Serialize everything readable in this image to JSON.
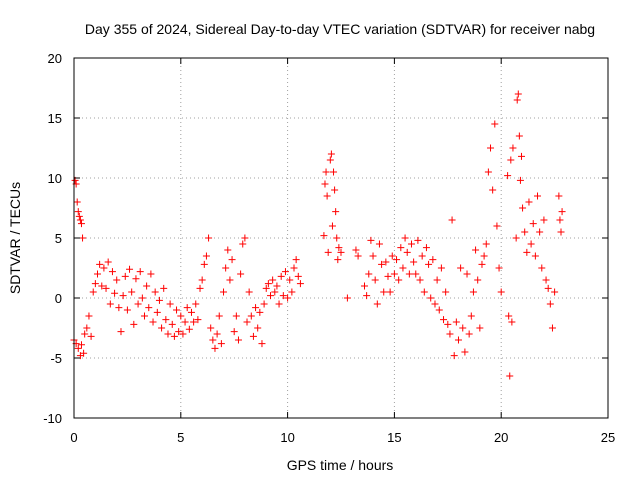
{
  "chart_data": {
    "type": "scatter",
    "title": "Day 355 of 2024, Sidereal Day-to-day VTEC variation (SDTVAR) for receiver nabg",
    "xlabel": "GPS time / hours",
    "ylabel": "SDTVAR / TECUs",
    "xlim": [
      0,
      25
    ],
    "ylim": [
      -10,
      20
    ],
    "xticks": [
      "0",
      "5",
      "10",
      "15",
      "20",
      "25"
    ],
    "yticks": [
      "20",
      "15",
      "10",
      "5",
      "0",
      "-5",
      "-10"
    ],
    "grid": true,
    "marker": "plus",
    "series": [
      {
        "name": "SDTVAR",
        "color": "#ff0000",
        "points": [
          [
            0.0,
            -3.5
          ],
          [
            0.05,
            9.8
          ],
          [
            0.1,
            9.5
          ],
          [
            0.15,
            8.0
          ],
          [
            0.2,
            7.2
          ],
          [
            0.25,
            6.8
          ],
          [
            0.3,
            6.5
          ],
          [
            0.35,
            6.2
          ],
          [
            0.4,
            5.0
          ],
          [
            0.45,
            -4.6
          ],
          [
            0.1,
            -3.8
          ],
          [
            0.2,
            -4.2
          ],
          [
            0.3,
            -4.8
          ],
          [
            0.35,
            -3.9
          ],
          [
            0.5,
            -3.0
          ],
          [
            0.6,
            -2.5
          ],
          [
            0.7,
            -1.5
          ],
          [
            0.8,
            -3.2
          ],
          [
            0.9,
            0.5
          ],
          [
            1.0,
            1.2
          ],
          [
            1.1,
            2.0
          ],
          [
            1.2,
            2.8
          ],
          [
            1.3,
            1.0
          ],
          [
            1.4,
            2.5
          ],
          [
            1.5,
            0.8
          ],
          [
            1.6,
            3.0
          ],
          [
            1.7,
            -0.5
          ],
          [
            1.8,
            2.2
          ],
          [
            1.9,
            0.4
          ],
          [
            2.0,
            1.5
          ],
          [
            2.1,
            -0.8
          ],
          [
            2.2,
            -2.8
          ],
          [
            2.3,
            0.2
          ],
          [
            2.4,
            1.8
          ],
          [
            2.5,
            -1.0
          ],
          [
            2.6,
            2.4
          ],
          [
            2.7,
            0.5
          ],
          [
            2.8,
            -2.2
          ],
          [
            2.9,
            1.6
          ],
          [
            3.0,
            -0.5
          ],
          [
            3.1,
            2.2
          ],
          [
            3.2,
            0.0
          ],
          [
            3.3,
            -1.5
          ],
          [
            3.4,
            1.0
          ],
          [
            3.5,
            -0.8
          ],
          [
            3.6,
            2.0
          ],
          [
            3.7,
            -2.0
          ],
          [
            3.8,
            0.5
          ],
          [
            3.9,
            -1.2
          ],
          [
            4.0,
            -0.2
          ],
          [
            4.1,
            -2.5
          ],
          [
            4.2,
            0.8
          ],
          [
            4.3,
            -1.8
          ],
          [
            4.4,
            -3.0
          ],
          [
            4.5,
            -0.5
          ],
          [
            4.6,
            -2.2
          ],
          [
            4.7,
            -3.2
          ],
          [
            4.8,
            -1.0
          ],
          [
            4.9,
            -2.8
          ],
          [
            5.0,
            -1.5
          ],
          [
            5.1,
            -3.0
          ],
          [
            5.2,
            -2.0
          ],
          [
            5.3,
            -0.8
          ],
          [
            5.4,
            -2.6
          ],
          [
            5.5,
            -1.2
          ],
          [
            5.6,
            -2.0
          ],
          [
            5.7,
            -0.5
          ],
          [
            5.8,
            -1.8
          ],
          [
            5.9,
            0.8
          ],
          [
            6.0,
            1.5
          ],
          [
            6.1,
            2.8
          ],
          [
            6.2,
            3.5
          ],
          [
            6.3,
            5.0
          ],
          [
            6.4,
            -2.5
          ],
          [
            6.5,
            -3.5
          ],
          [
            6.6,
            -4.2
          ],
          [
            6.7,
            -3.0
          ],
          [
            6.8,
            -1.5
          ],
          [
            6.9,
            -3.8
          ],
          [
            7.0,
            0.5
          ],
          [
            7.1,
            2.5
          ],
          [
            7.2,
            4.0
          ],
          [
            7.3,
            1.5
          ],
          [
            7.4,
            3.2
          ],
          [
            7.5,
            -2.8
          ],
          [
            7.6,
            -1.5
          ],
          [
            7.7,
            -3.5
          ],
          [
            7.8,
            2.0
          ],
          [
            7.9,
            4.5
          ],
          [
            8.0,
            5.0
          ],
          [
            8.1,
            -2.0
          ],
          [
            8.2,
            0.5
          ],
          [
            8.3,
            -1.5
          ],
          [
            8.4,
            -3.2
          ],
          [
            8.5,
            -0.8
          ],
          [
            8.6,
            -2.5
          ],
          [
            8.7,
            -1.2
          ],
          [
            8.8,
            -3.8
          ],
          [
            8.9,
            -0.5
          ],
          [
            9.0,
            0.8
          ],
          [
            9.1,
            1.2
          ],
          [
            9.2,
            0.2
          ],
          [
            9.3,
            1.5
          ],
          [
            9.4,
            0.5
          ],
          [
            9.5,
            1.0
          ],
          [
            9.6,
            -0.5
          ],
          [
            9.7,
            1.8
          ],
          [
            9.8,
            0.2
          ],
          [
            9.9,
            2.2
          ],
          [
            10.0,
            0.0
          ],
          [
            10.1,
            1.5
          ],
          [
            10.2,
            0.5
          ],
          [
            10.3,
            2.5
          ],
          [
            10.4,
            3.2
          ],
          [
            10.5,
            1.8
          ],
          [
            10.6,
            1.2
          ],
          [
            11.7,
            5.2
          ],
          [
            11.75,
            9.5
          ],
          [
            11.8,
            10.5
          ],
          [
            11.85,
            8.5
          ],
          [
            11.9,
            3.8
          ],
          [
            12.0,
            11.5
          ],
          [
            12.05,
            12.0
          ],
          [
            12.1,
            6.0
          ],
          [
            12.15,
            10.5
          ],
          [
            12.2,
            9.0
          ],
          [
            12.25,
            7.2
          ],
          [
            12.3,
            5.0
          ],
          [
            12.35,
            3.2
          ],
          [
            12.4,
            4.2
          ],
          [
            12.5,
            3.8
          ],
          [
            12.8,
            0.0
          ],
          [
            13.2,
            4.0
          ],
          [
            13.3,
            3.5
          ],
          [
            13.6,
            1.0
          ],
          [
            13.7,
            0.2
          ],
          [
            13.8,
            2.0
          ],
          [
            13.9,
            4.8
          ],
          [
            14.0,
            3.5
          ],
          [
            14.1,
            1.5
          ],
          [
            14.2,
            -0.5
          ],
          [
            14.3,
            4.5
          ],
          [
            14.4,
            2.8
          ],
          [
            14.5,
            0.5
          ],
          [
            14.6,
            3.0
          ],
          [
            14.7,
            1.8
          ],
          [
            14.8,
            0.5
          ],
          [
            14.9,
            3.5
          ],
          [
            15.0,
            2.0
          ],
          [
            15.1,
            3.2
          ],
          [
            15.2,
            1.5
          ],
          [
            15.3,
            4.2
          ],
          [
            15.4,
            2.5
          ],
          [
            15.5,
            5.0
          ],
          [
            15.6,
            3.8
          ],
          [
            15.7,
            2.0
          ],
          [
            15.8,
            4.5
          ],
          [
            15.9,
            3.0
          ],
          [
            16.0,
            2.0
          ],
          [
            16.1,
            4.8
          ],
          [
            16.2,
            1.5
          ],
          [
            16.3,
            3.5
          ],
          [
            16.4,
            0.5
          ],
          [
            16.5,
            4.2
          ],
          [
            16.6,
            2.8
          ],
          [
            16.7,
            0.0
          ],
          [
            16.8,
            3.2
          ],
          [
            16.9,
            -0.5
          ],
          [
            17.0,
            1.5
          ],
          [
            17.1,
            -1.0
          ],
          [
            17.2,
            2.5
          ],
          [
            17.3,
            -1.8
          ],
          [
            17.4,
            0.5
          ],
          [
            17.5,
            -2.2
          ],
          [
            17.6,
            -3.0
          ],
          [
            17.7,
            6.5
          ],
          [
            17.8,
            -4.8
          ],
          [
            17.9,
            -2.0
          ],
          [
            18.0,
            -3.5
          ],
          [
            18.1,
            2.5
          ],
          [
            18.2,
            -2.5
          ],
          [
            18.3,
            -4.5
          ],
          [
            18.4,
            2.0
          ],
          [
            18.5,
            -3.0
          ],
          [
            18.6,
            -1.5
          ],
          [
            18.7,
            0.5
          ],
          [
            18.8,
            4.0
          ],
          [
            18.9,
            1.5
          ],
          [
            19.0,
            -2.5
          ],
          [
            19.1,
            2.8
          ],
          [
            19.2,
            3.5
          ],
          [
            19.3,
            4.5
          ],
          [
            19.4,
            10.5
          ],
          [
            19.5,
            12.5
          ],
          [
            19.6,
            9.0
          ],
          [
            19.7,
            14.5
          ],
          [
            19.8,
            6.0
          ],
          [
            19.9,
            2.5
          ],
          [
            20.0,
            0.5
          ],
          [
            20.3,
            10.2
          ],
          [
            20.35,
            -1.5
          ],
          [
            20.4,
            -6.5
          ],
          [
            20.45,
            11.5
          ],
          [
            20.5,
            -2.0
          ],
          [
            20.55,
            12.5
          ],
          [
            20.7,
            5.0
          ],
          [
            20.75,
            16.5
          ],
          [
            20.8,
            17.0
          ],
          [
            20.85,
            13.5
          ],
          [
            20.9,
            9.8
          ],
          [
            20.95,
            11.8
          ],
          [
            21.0,
            7.5
          ],
          [
            21.1,
            5.5
          ],
          [
            21.2,
            3.8
          ],
          [
            21.3,
            8.0
          ],
          [
            21.4,
            4.5
          ],
          [
            21.5,
            6.2
          ],
          [
            21.6,
            3.5
          ],
          [
            21.7,
            8.5
          ],
          [
            21.8,
            5.5
          ],
          [
            21.9,
            2.5
          ],
          [
            22.0,
            6.5
          ],
          [
            22.1,
            1.5
          ],
          [
            22.2,
            0.8
          ],
          [
            22.3,
            -0.5
          ],
          [
            22.4,
            -2.5
          ],
          [
            22.5,
            0.5
          ],
          [
            22.7,
            8.5
          ],
          [
            22.75,
            6.5
          ],
          [
            22.8,
            5.5
          ],
          [
            22.85,
            7.2
          ]
        ]
      }
    ]
  }
}
